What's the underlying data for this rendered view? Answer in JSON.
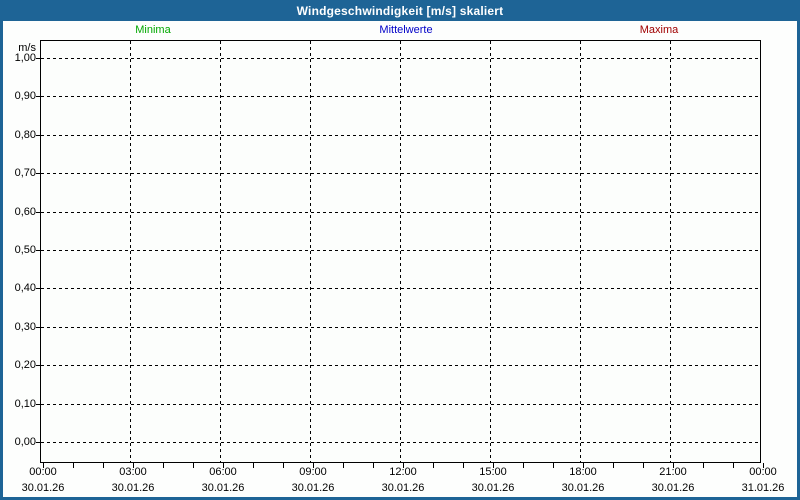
{
  "window": {
    "title": "Windgeschwindigkeit [m/s] skaliert"
  },
  "colors": {
    "frame_blue": "#1E6496",
    "minima_green": "#00A800",
    "mittelwerte_blue": "#0000C8",
    "maxima_red": "#A00000",
    "grid_black": "#000000",
    "plot_background": "#FCFEFC"
  },
  "legend": {
    "items": [
      {
        "label": "Minima",
        "color": "#00A800"
      },
      {
        "label": "Mittelwerte",
        "color": "#0000C8"
      },
      {
        "label": "Maxima",
        "color": "#A00000"
      }
    ]
  },
  "y_axis": {
    "unit": "m/s",
    "tick_labels": [
      "1,00",
      "0,90",
      "0,80",
      "0,70",
      "0,60",
      "0,50",
      "0,40",
      "0,30",
      "0,20",
      "0,10",
      "0,00"
    ]
  },
  "x_axis": {
    "time_labels": [
      "00:00",
      "03:00",
      "06:00",
      "09:00",
      "12:00",
      "15:00",
      "18:00",
      "21:00",
      "00:00"
    ],
    "date_labels": [
      "30.01.26",
      "30.01.26",
      "30.01.26",
      "30.01.26",
      "30.01.26",
      "30.01.26",
      "30.01.26",
      "30.01.26",
      "31.01.26"
    ]
  },
  "chart_data": {
    "type": "line",
    "title": "Windgeschwindigkeit [m/s] skaliert",
    "xlabel": "",
    "ylabel": "m/s",
    "ylim": [
      0.0,
      1.0
    ],
    "y_tick_step": 0.1,
    "y_ticks": [
      1.0,
      0.9,
      0.8,
      0.7,
      0.6,
      0.5,
      0.4,
      0.3,
      0.2,
      0.1,
      0.0
    ],
    "x": [
      "30.01.26 00:00",
      "30.01.26 03:00",
      "30.01.26 06:00",
      "30.01.26 09:00",
      "30.01.26 12:00",
      "30.01.26 15:00",
      "30.01.26 18:00",
      "30.01.26 21:00",
      "31.01.26 00:00"
    ],
    "x_minor_tick_hours": 1,
    "grid": true,
    "legend_position": "top",
    "series": [
      {
        "name": "Minima",
        "color": "#00A800",
        "values": []
      },
      {
        "name": "Mittelwerte",
        "color": "#0000C8",
        "values": []
      },
      {
        "name": "Maxima",
        "color": "#A00000",
        "values": []
      }
    ]
  }
}
